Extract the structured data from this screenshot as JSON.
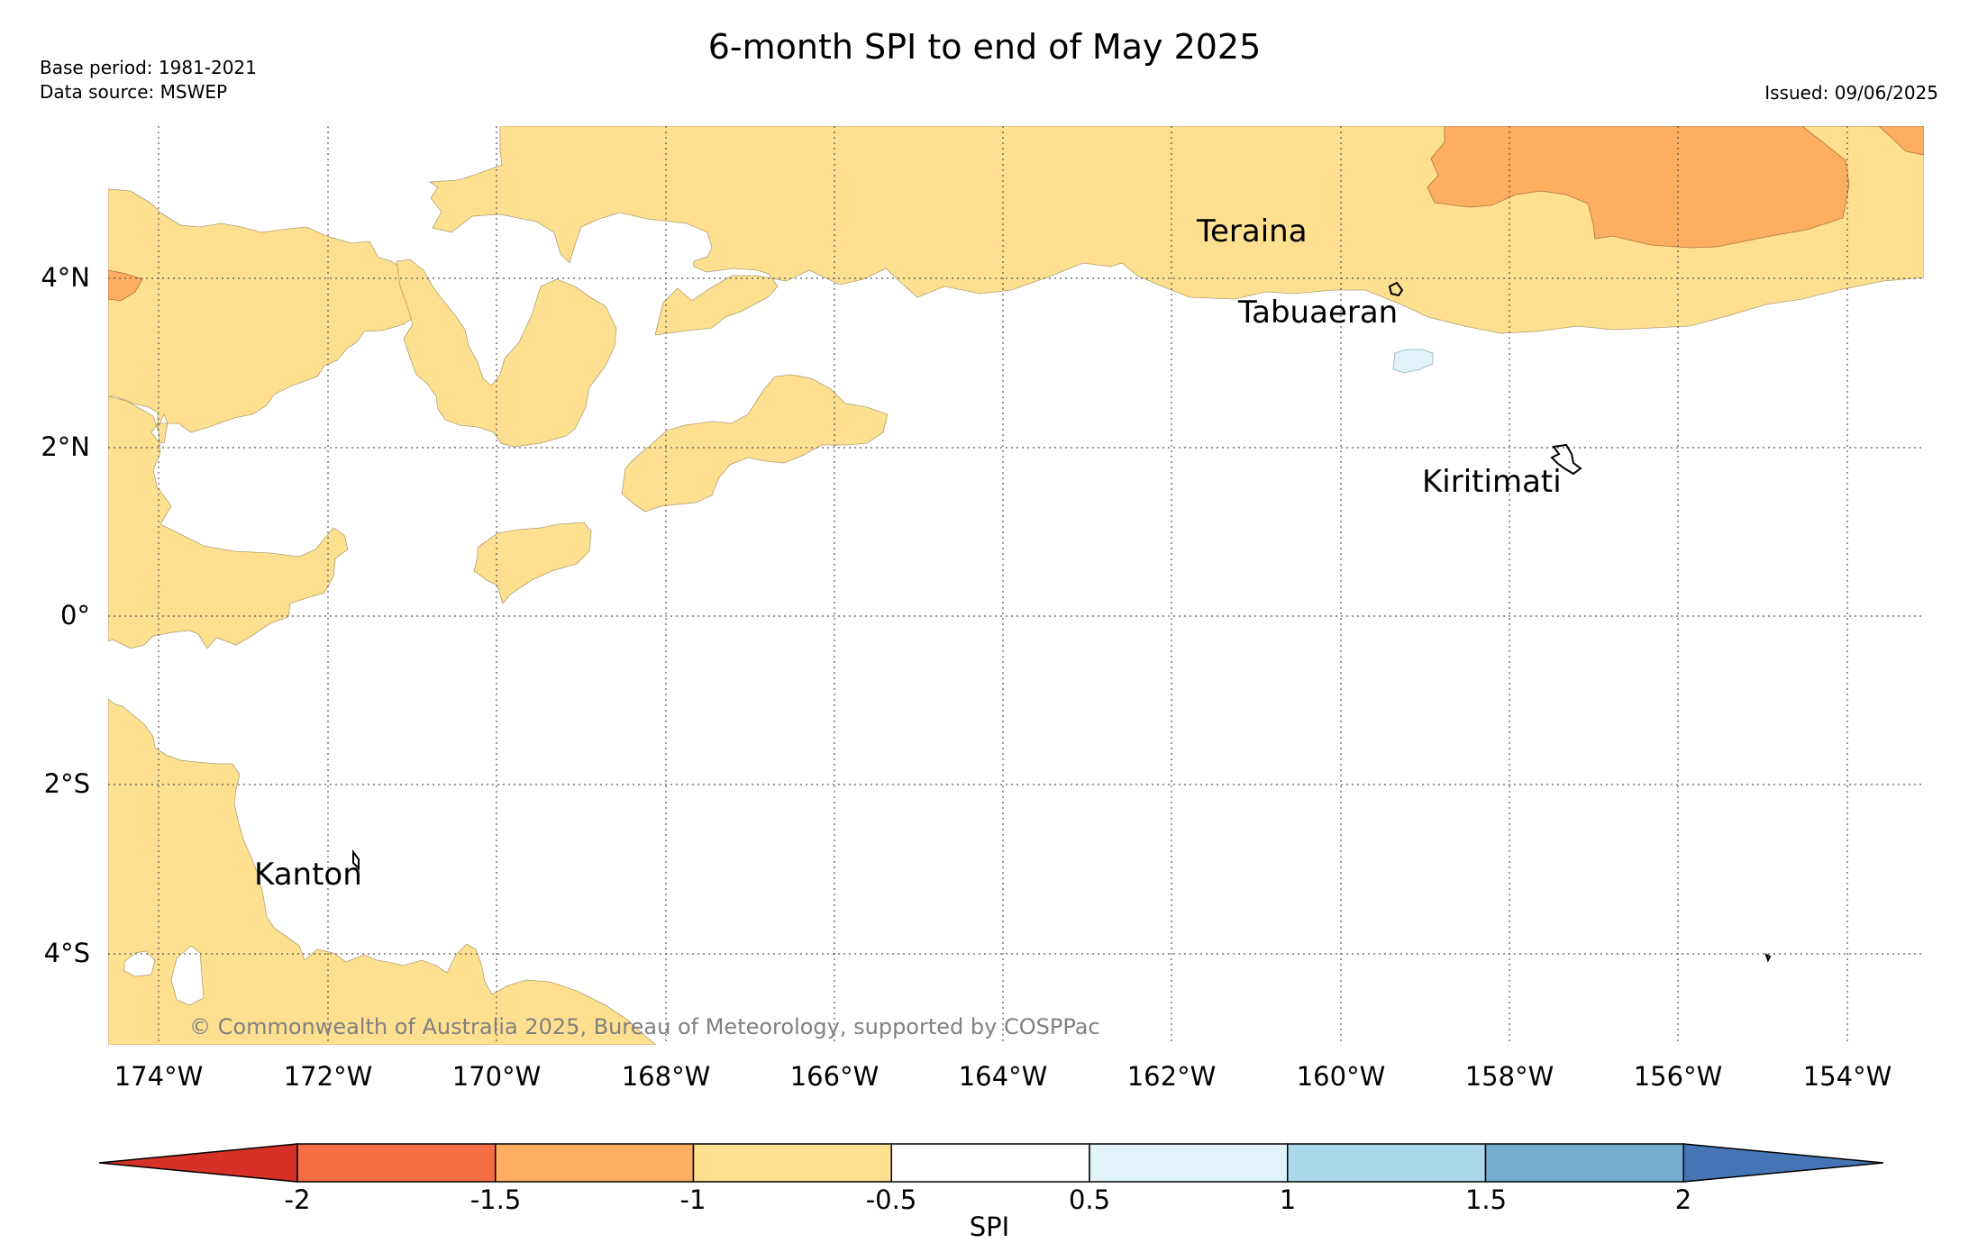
{
  "title": "6-month SPI to end of May 2025",
  "meta": {
    "base_period": "Base period: 1981-2021",
    "data_source": "Data source: MSWEP",
    "issued": "Issued: 09/06/2025"
  },
  "map": {
    "latitude_labels": [
      "4°N",
      "2°N",
      "0°",
      "2°S",
      "4°S"
    ],
    "longitude_labels": [
      "174°W",
      "172°W",
      "170°W",
      "168°W",
      "166°W",
      "164°W",
      "162°W",
      "160°W",
      "158°W",
      "156°W",
      "154°W"
    ],
    "places": [
      {
        "name": "Teraina"
      },
      {
        "name": "Tabuaeran"
      },
      {
        "name": "Kiritimati"
      },
      {
        "name": "Kanton"
      }
    ],
    "copyright": "© Commonwealth of Australia 2025, Bureau of Meteorology, supported by COSPPac",
    "gridlines": "dotted"
  },
  "legend": {
    "title": "SPI",
    "ticks": [
      "-2",
      "-1.5",
      "-1",
      "-0.5",
      "0.5",
      "1",
      "1.5",
      "2"
    ],
    "bins": [
      {
        "range": "< -2",
        "color": "#d73027"
      },
      {
        "range": "-2 to -1.5",
        "color": "#f46d43"
      },
      {
        "range": "-1.5 to -1",
        "color": "#fdae61"
      },
      {
        "range": "-1 to -0.5",
        "color": "#fee090"
      },
      {
        "range": "-0.5 to 0.5",
        "color": "#ffffff"
      },
      {
        "range": "0.5 to 1",
        "color": "#e0f3f8"
      },
      {
        "range": "1 to 1.5",
        "color": "#abd9e9"
      },
      {
        "range": "1.5 to 2",
        "color": "#74add1"
      },
      {
        "range": "> 2",
        "color": "#4575b4"
      }
    ]
  }
}
